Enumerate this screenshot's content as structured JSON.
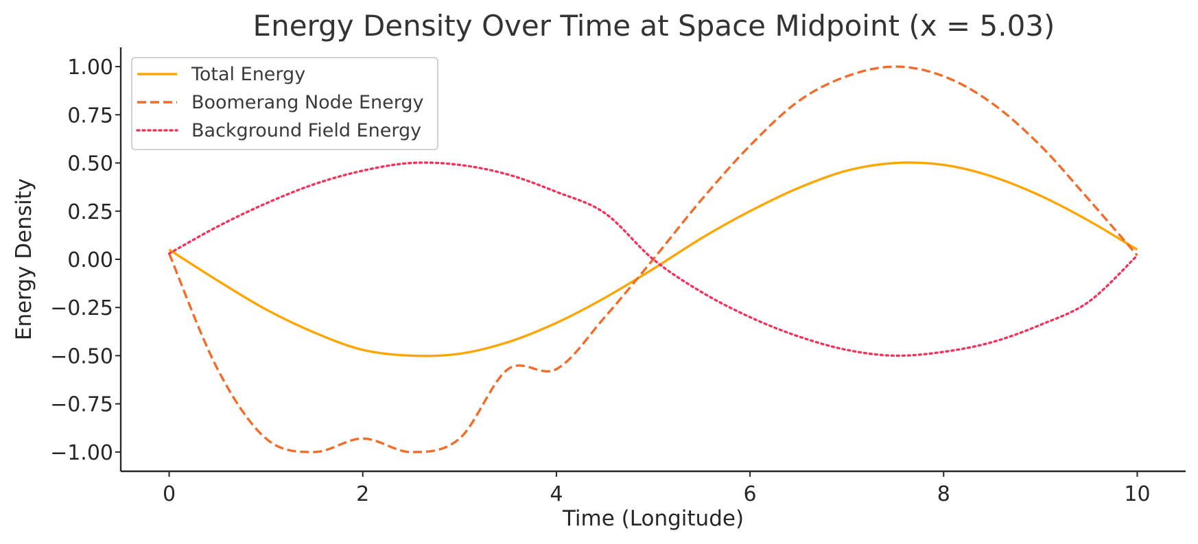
{
  "chart_data": {
    "type": "line",
    "title": "Energy Density Over Time at Space Midpoint (x = 5.03)",
    "xlabel": "Time (Longitude)",
    "ylabel": "Energy Density",
    "xlim": [
      -0.5,
      10.5
    ],
    "ylim": [
      -1.1,
      1.1
    ],
    "x_ticks": [
      0,
      2,
      4,
      6,
      8,
      10
    ],
    "x_tick_labels": [
      "0",
      "2",
      "4",
      "6",
      "8",
      "10"
    ],
    "y_ticks": [
      1.0,
      0.75,
      0.5,
      0.25,
      0.0,
      -0.25,
      -0.5,
      -0.75,
      -1.0
    ],
    "y_tick_labels": [
      "1.00",
      "0.75",
      "0.50",
      "0.25",
      "0.00",
      "−0.25",
      "−0.50",
      "−0.75",
      "−1.00"
    ],
    "grid": false,
    "legend_position": "top-left",
    "x": [
      0,
      0.5,
      1,
      1.5,
      2,
      2.5,
      3,
      3.5,
      4,
      4.5,
      5,
      5.5,
      6,
      6.5,
      7,
      7.5,
      8,
      8.5,
      9,
      9.5,
      10
    ],
    "series": [
      {
        "name": "Total Energy",
        "color": "#FFA500",
        "style": "solid",
        "values": [
          0.05,
          -0.11,
          -0.26,
          -0.38,
          -0.47,
          -0.5,
          -0.49,
          -0.43,
          -0.33,
          -0.2,
          -0.05,
          0.11,
          0.25,
          0.37,
          0.46,
          0.5,
          0.49,
          0.43,
          0.33,
          0.2,
          0.05
        ]
      },
      {
        "name": "Boomerang Node Energy",
        "color": "#F26B29",
        "style": "dashed",
        "values": [
          0.03,
          -0.57,
          -0.93,
          -1.0,
          -0.93,
          -1.0,
          -0.93,
          -0.57,
          -0.57,
          -0.3,
          0.0,
          0.31,
          0.59,
          0.82,
          0.95,
          1.0,
          0.95,
          0.81,
          0.59,
          0.31,
          0.02
        ]
      },
      {
        "name": "Background Field Energy",
        "color": "#F2335B",
        "style": "dotted",
        "values": [
          0.03,
          0.17,
          0.29,
          0.39,
          0.46,
          0.5,
          0.49,
          0.44,
          0.35,
          0.24,
          0.0,
          -0.17,
          -0.3,
          -0.4,
          -0.47,
          -0.5,
          -0.48,
          -0.43,
          -0.34,
          -0.22,
          0.02
        ]
      }
    ]
  }
}
